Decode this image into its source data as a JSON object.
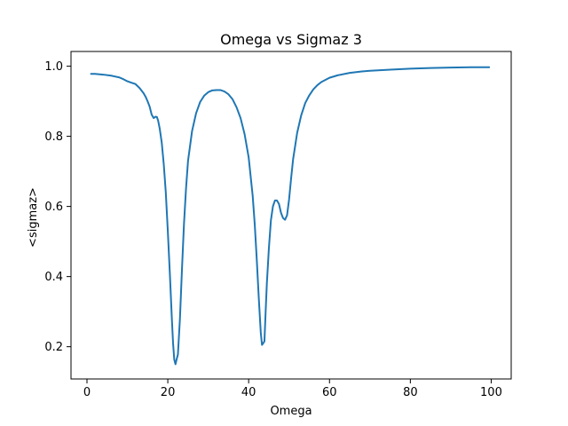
{
  "chart_data": {
    "type": "line",
    "title": "Omega vs Sigmaz 3",
    "xlabel": "Omega",
    "ylabel": "<sigmaz>",
    "xlim": [
      -3.95,
      104.95
    ],
    "ylim": [
      0.108,
      1.042
    ],
    "xticks": [
      0,
      20,
      40,
      60,
      80,
      100
    ],
    "yticks": [
      0.2,
      0.4,
      0.6,
      0.8,
      1.0
    ],
    "xtick_labels": [
      "0",
      "20",
      "40",
      "60",
      "80",
      "100"
    ],
    "ytick_labels": [
      "0.2",
      "0.4",
      "0.6",
      "0.8",
      "1.0"
    ],
    "grid": false,
    "color": "#1f77b4",
    "series": [
      {
        "x": [
          1,
          2,
          4,
          6,
          8,
          9,
          10,
          11,
          12,
          13,
          14,
          14.5,
          15,
          15.5,
          16,
          16.5,
          17,
          17.3,
          17.6,
          18,
          18.5,
          19,
          19.5,
          20,
          20.5,
          21,
          21.3,
          21.6,
          21.9,
          22.2,
          22.5,
          23,
          23.5,
          24,
          24.5,
          25,
          26,
          27,
          28,
          29,
          30,
          31,
          32,
          33,
          34,
          35,
          36,
          37,
          38,
          39,
          40,
          41,
          41.5,
          42,
          42.5,
          43,
          43.3,
          43.6,
          43.9,
          44.2,
          44.5,
          45,
          45.5,
          46,
          46.5,
          47,
          47.5,
          48,
          48.5,
          49,
          49.5,
          50,
          50.5,
          51,
          52,
          53,
          54,
          55,
          56,
          57,
          58,
          60,
          62,
          65,
          68,
          70,
          75,
          80,
          85,
          90,
          95,
          99.5
        ],
        "y": [
          0.978,
          0.978,
          0.976,
          0.973,
          0.968,
          0.963,
          0.957,
          0.953,
          0.949,
          0.938,
          0.923,
          0.913,
          0.9,
          0.885,
          0.862,
          0.852,
          0.856,
          0.855,
          0.845,
          0.822,
          0.782,
          0.72,
          0.64,
          0.53,
          0.41,
          0.28,
          0.21,
          0.163,
          0.15,
          0.165,
          0.178,
          0.28,
          0.42,
          0.55,
          0.65,
          0.73,
          0.815,
          0.866,
          0.898,
          0.916,
          0.926,
          0.931,
          0.932,
          0.932,
          0.928,
          0.92,
          0.906,
          0.883,
          0.852,
          0.806,
          0.74,
          0.63,
          0.55,
          0.45,
          0.34,
          0.24,
          0.205,
          0.21,
          0.215,
          0.3,
          0.38,
          0.48,
          0.56,
          0.6,
          0.617,
          0.617,
          0.607,
          0.582,
          0.567,
          0.562,
          0.575,
          0.62,
          0.68,
          0.735,
          0.81,
          0.86,
          0.895,
          0.917,
          0.934,
          0.946,
          0.955,
          0.967,
          0.974,
          0.981,
          0.985,
          0.987,
          0.99,
          0.993,
          0.995,
          0.996,
          0.997,
          0.997
        ]
      }
    ]
  }
}
